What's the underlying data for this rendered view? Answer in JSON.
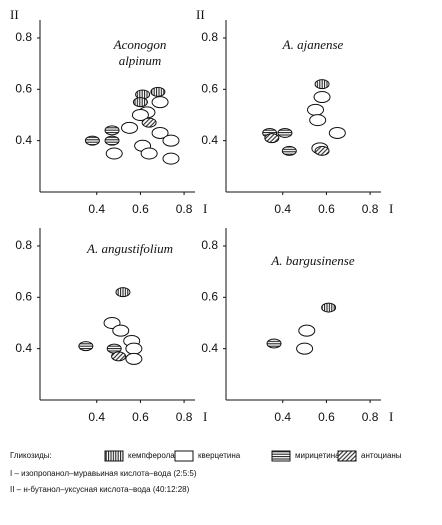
{
  "chart_data": [
    {
      "type": "scatter",
      "title": [
        "Aconogon",
        "alpinum"
      ],
      "x_label": "I",
      "y_label": "II",
      "xlim": [
        0.14,
        0.85
      ],
      "ylim": [
        0.2,
        0.87
      ],
      "xticks": [
        0.4,
        0.6,
        0.8
      ],
      "yticks": [
        0.4,
        0.6,
        0.8
      ],
      "series": [
        {
          "pattern": "vertical",
          "x": [
            0.61,
            0.68,
            0.6
          ],
          "values": [
            0.58,
            0.59,
            0.55
          ]
        },
        {
          "pattern": "empty",
          "x": [
            0.48,
            0.55,
            0.69,
            0.63,
            0.6,
            0.69,
            0.74,
            0.61,
            0.64,
            0.74
          ],
          "values": [
            0.35,
            0.45,
            0.55,
            0.51,
            0.5,
            0.43,
            0.4,
            0.38,
            0.35,
            0.33
          ]
        },
        {
          "pattern": "horizontal",
          "x": [
            0.38,
            0.47,
            0.47
          ],
          "values": [
            0.4,
            0.44,
            0.4
          ]
        },
        {
          "pattern": "diagonal",
          "x": [
            0.64
          ],
          "values": [
            0.47
          ]
        }
      ]
    },
    {
      "type": "scatter",
      "title": [
        "A. ajanense"
      ],
      "x_label": "I",
      "y_label": "II",
      "xlim": [
        0.14,
        0.85
      ],
      "ylim": [
        0.2,
        0.87
      ],
      "xticks": [
        0.4,
        0.6,
        0.8
      ],
      "yticks": [
        0.4,
        0.6,
        0.8
      ],
      "series": [
        {
          "pattern": "vertical",
          "x": [
            0.58
          ],
          "values": [
            0.62
          ]
        },
        {
          "pattern": "empty",
          "x": [
            0.58,
            0.55,
            0.56,
            0.65,
            0.57
          ],
          "values": [
            0.57,
            0.52,
            0.48,
            0.43,
            0.37
          ]
        },
        {
          "pattern": "horizontal",
          "x": [
            0.34,
            0.41,
            0.43
          ],
          "values": [
            0.43,
            0.43,
            0.36
          ]
        },
        {
          "pattern": "diagonal",
          "x": [
            0.35,
            0.58
          ],
          "values": [
            0.41,
            0.36
          ]
        }
      ]
    },
    {
      "type": "scatter",
      "title": [
        "A. angustifolium"
      ],
      "x_label": "I",
      "xlim": [
        0.14,
        0.85
      ],
      "ylim": [
        0.2,
        0.87
      ],
      "xticks": [
        0.4,
        0.6,
        0.8
      ],
      "yticks": [
        0.4,
        0.6,
        0.8
      ],
      "series": [
        {
          "pattern": "vertical",
          "x": [
            0.52
          ],
          "values": [
            0.62
          ]
        },
        {
          "pattern": "empty",
          "x": [
            0.47,
            0.51,
            0.56,
            0.57,
            0.57
          ],
          "values": [
            0.5,
            0.47,
            0.43,
            0.4,
            0.36
          ]
        },
        {
          "pattern": "horizontal",
          "x": [
            0.35,
            0.48
          ],
          "values": [
            0.41,
            0.4
          ]
        },
        {
          "pattern": "diagonal",
          "x": [
            0.5
          ],
          "values": [
            0.37
          ]
        }
      ]
    },
    {
      "type": "scatter",
      "title": [
        "A. bargusinense"
      ],
      "x_label": "I",
      "xlim": [
        0.14,
        0.85
      ],
      "ylim": [
        0.2,
        0.87
      ],
      "xticks": [
        0.4,
        0.6,
        0.8
      ],
      "yticks": [
        0.4,
        0.6,
        0.8
      ],
      "series": [
        {
          "pattern": "vertical",
          "x": [
            0.61
          ],
          "values": [
            0.56
          ]
        },
        {
          "pattern": "empty",
          "x": [
            0.51,
            0.5
          ],
          "values": [
            0.47,
            0.4
          ]
        },
        {
          "pattern": "horizontal",
          "x": [
            0.36
          ],
          "values": [
            0.42
          ]
        }
      ]
    }
  ],
  "legend": {
    "title": "Гликозиды:",
    "entries": [
      {
        "name": "кемпферола",
        "pattern": "vertical"
      },
      {
        "name": "кверцетина",
        "pattern": "empty"
      },
      {
        "name": "мирицетина",
        "pattern": "horizontal"
      },
      {
        "name": "антоцианы",
        "pattern": "diagonal"
      }
    ]
  },
  "notes": [
    "I – изопропанол–муравьиная кислота–вода (2:5:5)",
    "II – н-бутанол–уксусная кислота–вода (40:12:28)"
  ]
}
